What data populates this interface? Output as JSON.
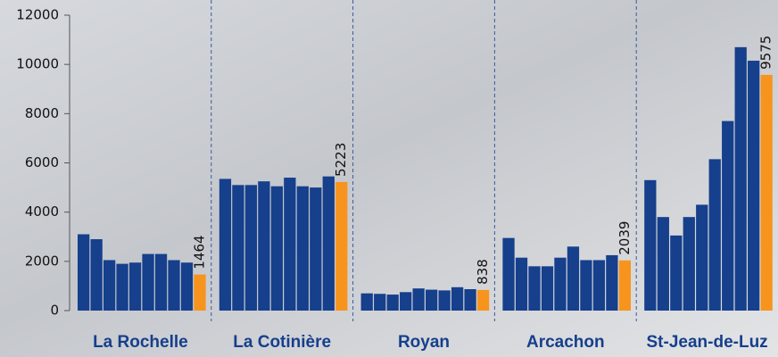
{
  "chart_data": {
    "type": "bar",
    "groups": [
      {
        "name": "La Rochelle",
        "values": [
          3100,
          2900,
          2050,
          1900,
          1950,
          2300,
          2300,
          2050,
          1950,
          1464
        ]
      },
      {
        "name": "La Cotinière",
        "values": [
          5350,
          5100,
          5100,
          5250,
          5050,
          5400,
          5050,
          5000,
          5450,
          5223
        ]
      },
      {
        "name": "Royan",
        "values": [
          700,
          680,
          650,
          750,
          900,
          850,
          820,
          950,
          870,
          838
        ]
      },
      {
        "name": "Arcachon",
        "values": [
          2950,
          2150,
          1800,
          1800,
          2150,
          2600,
          2050,
          2050,
          2250,
          2039
        ]
      },
      {
        "name": "St-Jean-de-Luz",
        "values": [
          5300,
          3800,
          3050,
          3800,
          4300,
          6150,
          7700,
          10700,
          10150,
          9575
        ]
      }
    ],
    "color": "#163f8c",
    "highlight_color": "#f7941d",
    "ylim": [
      0,
      12000
    ],
    "yticks": [
      0,
      2000,
      4000,
      6000,
      8000,
      10000,
      12000
    ]
  }
}
